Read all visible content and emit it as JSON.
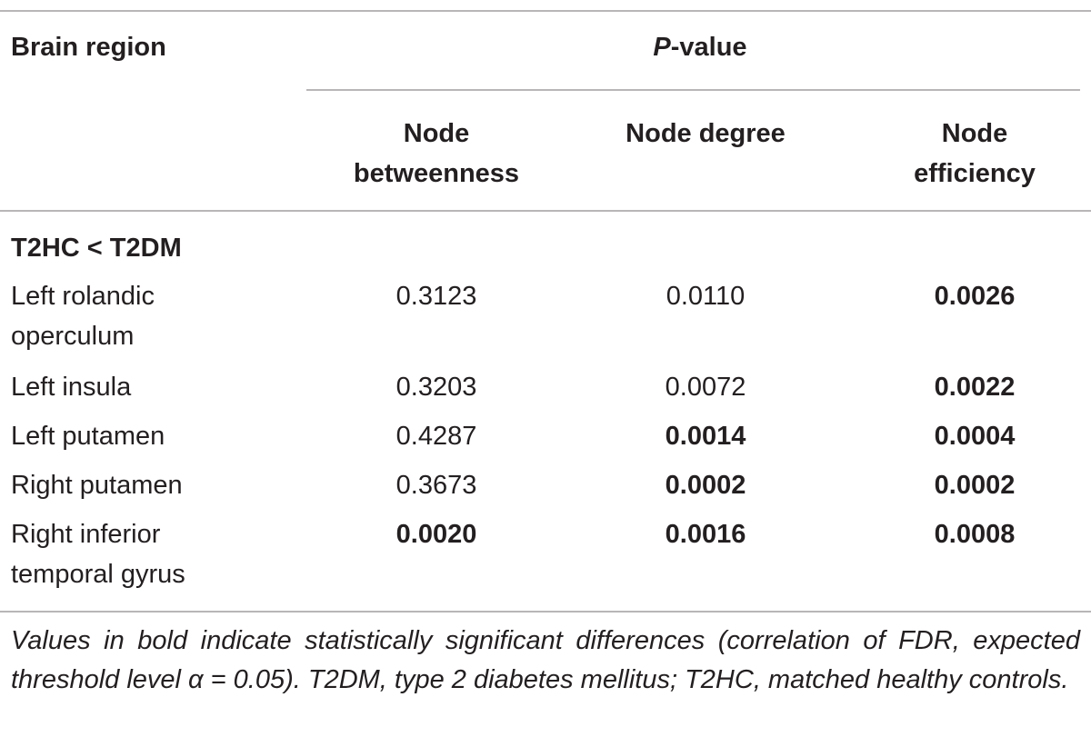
{
  "table": {
    "header": {
      "brain_region": "Brain region",
      "pvalue_italic": "P",
      "pvalue_rest": "-value",
      "col_betweenness": [
        "Node",
        "betweenness"
      ],
      "col_degree": "Node degree",
      "col_efficiency": [
        "Node",
        "efficiency"
      ]
    },
    "section": "T2HC < T2DM",
    "rows": [
      {
        "region": [
          "Left rolandic",
          "operculum"
        ],
        "betweenness": "0.3123",
        "degree": "0.0110",
        "efficiency": "0.0026",
        "bold": {
          "betweenness": false,
          "degree": false,
          "efficiency": true
        }
      },
      {
        "region": [
          "Left insula"
        ],
        "betweenness": "0.3203",
        "degree": "0.0072",
        "efficiency": "0.0022",
        "bold": {
          "betweenness": false,
          "degree": false,
          "efficiency": true
        }
      },
      {
        "region": [
          "Left putamen"
        ],
        "betweenness": "0.4287",
        "degree": "0.0014",
        "efficiency": "0.0004",
        "bold": {
          "betweenness": false,
          "degree": true,
          "efficiency": true
        }
      },
      {
        "region": [
          "Right putamen"
        ],
        "betweenness": "0.3673",
        "degree": "0.0002",
        "efficiency": "0.0002",
        "bold": {
          "betweenness": false,
          "degree": true,
          "efficiency": true
        }
      },
      {
        "region": [
          "Right inferior",
          "temporal gyrus"
        ],
        "betweenness": "0.0020",
        "degree": "0.0016",
        "efficiency": "0.0008",
        "bold": {
          "betweenness": true,
          "degree": true,
          "efficiency": true
        }
      }
    ],
    "footnote": "Values in bold indicate statistically significant differences (correlation of FDR, expected threshold level α = 0.05). T2DM, type 2 diabetes mellitus; T2HC, matched healthy controls.",
    "rule_color": "#b8b6b6",
    "text_color": "#231f20"
  }
}
